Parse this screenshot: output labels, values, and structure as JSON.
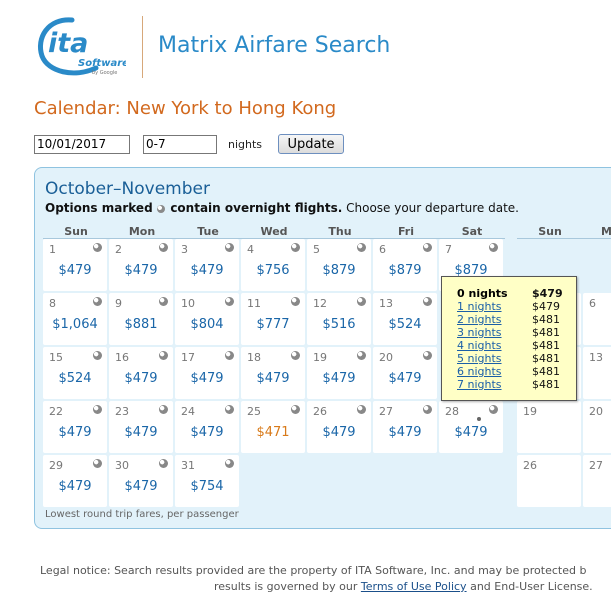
{
  "logo": {
    "main": "ita",
    "software": "Software",
    "by_google": "by Google"
  },
  "app_title": "Matrix Airfare Search",
  "page_heading": "Calendar: New York to Hong Kong",
  "search": {
    "date_value": "10/01/2017",
    "nights_value": "0-7",
    "nights_label": "nights",
    "update_label": "Update"
  },
  "calendar": {
    "title": "October–November",
    "subtitle_bold_a": "Options marked",
    "subtitle_bold_b": "contain overnight flights.",
    "subtitle_rest": "Choose your departure date.",
    "weekdays": [
      "Sun",
      "Mon",
      "Tue",
      "Wed",
      "Thu",
      "Fri",
      "Sat"
    ],
    "next_weekdays": [
      "Sun",
      "M"
    ],
    "weeks": [
      [
        {
          "d": "1",
          "fare": "$479"
        },
        {
          "d": "2",
          "fare": "$479"
        },
        {
          "d": "3",
          "fare": "$479"
        },
        {
          "d": "4",
          "fare": "$756"
        },
        {
          "d": "5",
          "fare": "$879"
        },
        {
          "d": "6",
          "fare": "$879"
        },
        {
          "d": "7",
          "fare": "$879"
        }
      ],
      [
        {
          "d": "8",
          "fare": "$1,064"
        },
        {
          "d": "9",
          "fare": "$881"
        },
        {
          "d": "10",
          "fare": "$804"
        },
        {
          "d": "11",
          "fare": "$777"
        },
        {
          "d": "12",
          "fare": "$516"
        },
        {
          "d": "13",
          "fare": "$524"
        },
        null
      ],
      [
        {
          "d": "15",
          "fare": "$524"
        },
        {
          "d": "16",
          "fare": "$479"
        },
        {
          "d": "17",
          "fare": "$479"
        },
        {
          "d": "18",
          "fare": "$479"
        },
        {
          "d": "19",
          "fare": "$479"
        },
        {
          "d": "20",
          "fare": "$479"
        },
        null
      ],
      [
        {
          "d": "22",
          "fare": "$479"
        },
        {
          "d": "23",
          "fare": "$479"
        },
        {
          "d": "24",
          "fare": "$479"
        },
        {
          "d": "25",
          "fare": "$471",
          "cheapest": true
        },
        {
          "d": "26",
          "fare": "$479"
        },
        {
          "d": "27",
          "fare": "$479"
        },
        {
          "d": "28",
          "fare": "$479",
          "selected": true
        }
      ],
      [
        {
          "d": "29",
          "fare": "$479"
        },
        {
          "d": "30",
          "fare": "$479"
        },
        {
          "d": "31",
          "fare": "$754"
        }
      ]
    ],
    "next_month_days": [
      {
        "row": 1,
        "sun": "",
        "mon": "6"
      },
      {
        "row": 2,
        "sun": "",
        "mon": "13"
      },
      {
        "row": 3,
        "sun": "19",
        "mon": "20"
      },
      {
        "row": 4,
        "sun": "26",
        "mon": "27"
      }
    ],
    "footer": "Lowest round trip fares, per passenger"
  },
  "tooltip": {
    "rows": [
      {
        "label": "0 nights",
        "fare": "$479",
        "header": true
      },
      {
        "label": "1 nights",
        "fare": "$479"
      },
      {
        "label": "2 nights",
        "fare": "$481"
      },
      {
        "label": "3 nights",
        "fare": "$481"
      },
      {
        "label": "4 nights",
        "fare": "$481"
      },
      {
        "label": "5 nights",
        "fare": "$481"
      },
      {
        "label": "6 nights",
        "fare": "$481"
      },
      {
        "label": "7 nights",
        "fare": "$481"
      }
    ]
  },
  "legal": {
    "line1": "Legal notice: Search results provided are the property of ITA Software, Inc. and may be protected b",
    "line2_a": "results is governed by our ",
    "line2_link": "Terms of Use Policy",
    "line2_b": " and End-User License."
  },
  "colors": {
    "accent": "#2a8ac8",
    "heading": "#d2691e",
    "fare": "#1a66a8",
    "cheapest": "#d87a1a",
    "panel": "#e2f2fa"
  }
}
